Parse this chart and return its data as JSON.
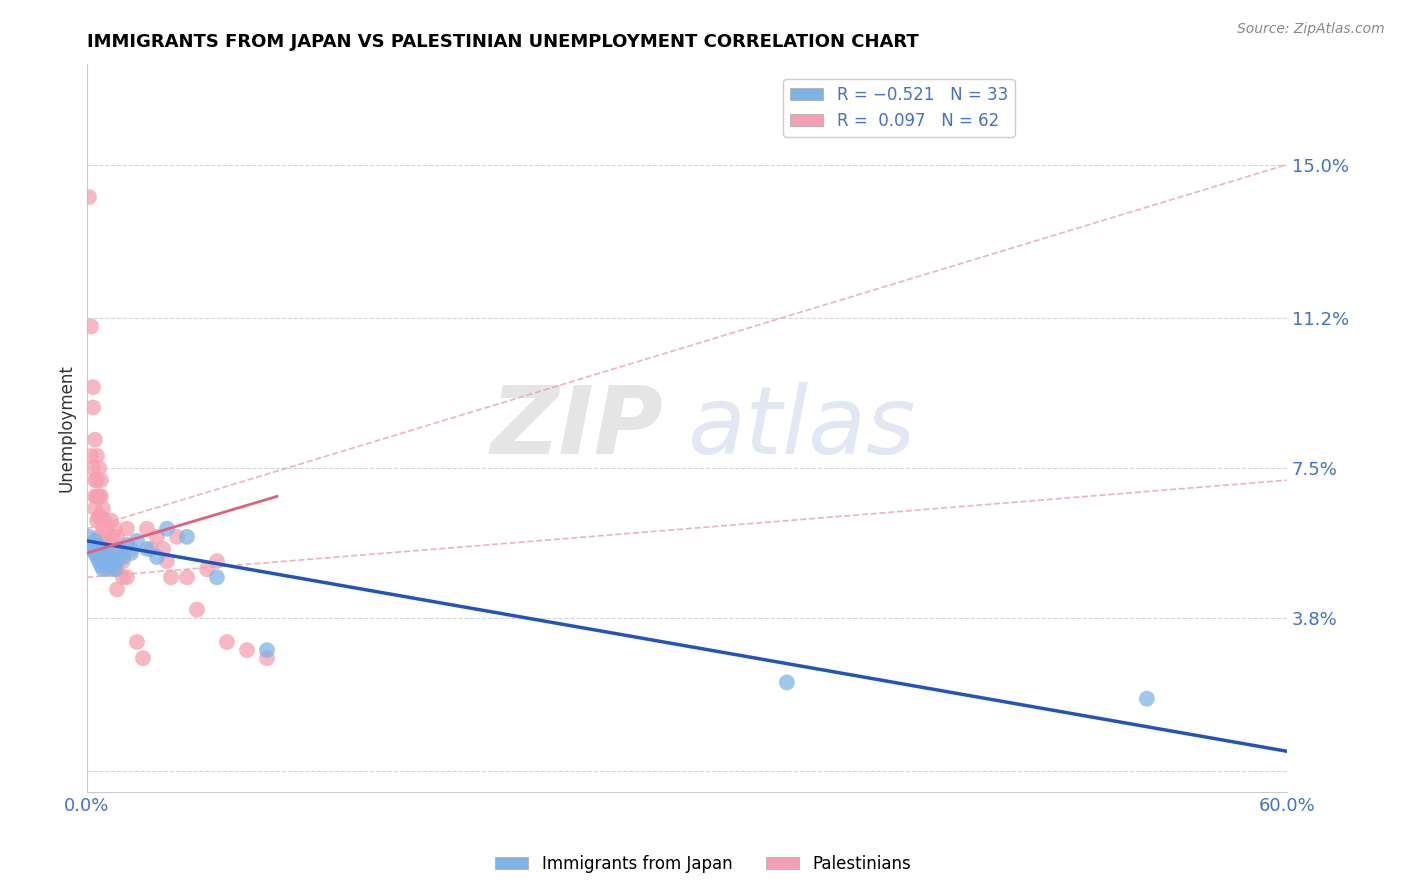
{
  "title": "IMMIGRANTS FROM JAPAN VS PALESTINIAN UNEMPLOYMENT CORRELATION CHART",
  "source_text": "Source: ZipAtlas.com",
  "ylabel": "Unemployment",
  "xlim": [
    0.0,
    0.6
  ],
  "ylim": [
    -0.005,
    0.175
  ],
  "yticks": [
    0.0,
    0.038,
    0.075,
    0.112,
    0.15
  ],
  "ytick_labels": [
    "",
    "3.8%",
    "7.5%",
    "11.2%",
    "15.0%"
  ],
  "xticks": [
    0.0,
    0.1,
    0.2,
    0.3,
    0.4,
    0.5,
    0.6
  ],
  "xtick_labels": [
    "0.0%",
    "",
    "",
    "",
    "",
    "",
    "60.0%"
  ],
  "japan_color": "#7fb3e8",
  "palestine_color": "#f5a0b0",
  "background_color": "#ffffff",
  "grid_color": "#c8c8d0",
  "axis_label_color": "#4472c4",
  "watermark_zip": "ZIP",
  "watermark_atlas": "atlas",
  "japan_line_color": "#2255bb",
  "palestine_line_color": "#e06080",
  "palestine_ci_color": "#e8a0b0",
  "japan_points": [
    [
      0.001,
      0.058
    ],
    [
      0.002,
      0.055
    ],
    [
      0.003,
      0.055
    ],
    [
      0.004,
      0.057
    ],
    [
      0.004,
      0.054
    ],
    [
      0.005,
      0.056
    ],
    [
      0.005,
      0.053
    ],
    [
      0.006,
      0.055
    ],
    [
      0.006,
      0.052
    ],
    [
      0.007,
      0.054
    ],
    [
      0.007,
      0.051
    ],
    [
      0.008,
      0.053
    ],
    [
      0.008,
      0.05
    ],
    [
      0.009,
      0.052
    ],
    [
      0.01,
      0.054
    ],
    [
      0.011,
      0.052
    ],
    [
      0.012,
      0.053
    ],
    [
      0.013,
      0.051
    ],
    [
      0.014,
      0.05
    ],
    [
      0.015,
      0.052
    ],
    [
      0.016,
      0.055
    ],
    [
      0.018,
      0.053
    ],
    [
      0.02,
      0.056
    ],
    [
      0.022,
      0.054
    ],
    [
      0.025,
      0.057
    ],
    [
      0.03,
      0.055
    ],
    [
      0.035,
      0.053
    ],
    [
      0.04,
      0.06
    ],
    [
      0.05,
      0.058
    ],
    [
      0.065,
      0.048
    ],
    [
      0.09,
      0.03
    ],
    [
      0.35,
      0.022
    ],
    [
      0.53,
      0.018
    ]
  ],
  "palestine_points": [
    [
      0.001,
      0.142
    ],
    [
      0.002,
      0.11
    ],
    [
      0.002,
      0.078
    ],
    [
      0.003,
      0.095
    ],
    [
      0.003,
      0.075
    ],
    [
      0.003,
      0.09
    ],
    [
      0.004,
      0.082
    ],
    [
      0.004,
      0.072
    ],
    [
      0.004,
      0.068
    ],
    [
      0.004,
      0.065
    ],
    [
      0.005,
      0.078
    ],
    [
      0.005,
      0.072
    ],
    [
      0.005,
      0.068
    ],
    [
      0.005,
      0.062
    ],
    [
      0.006,
      0.075
    ],
    [
      0.006,
      0.068
    ],
    [
      0.006,
      0.063
    ],
    [
      0.006,
      0.058
    ],
    [
      0.007,
      0.072
    ],
    [
      0.007,
      0.068
    ],
    [
      0.007,
      0.063
    ],
    [
      0.007,
      0.057
    ],
    [
      0.008,
      0.065
    ],
    [
      0.008,
      0.06
    ],
    [
      0.008,
      0.055
    ],
    [
      0.009,
      0.062
    ],
    [
      0.009,
      0.057
    ],
    [
      0.01,
      0.06
    ],
    [
      0.01,
      0.055
    ],
    [
      0.01,
      0.05
    ],
    [
      0.011,
      0.057
    ],
    [
      0.012,
      0.062
    ],
    [
      0.012,
      0.055
    ],
    [
      0.012,
      0.05
    ],
    [
      0.013,
      0.058
    ],
    [
      0.014,
      0.06
    ],
    [
      0.014,
      0.055
    ],
    [
      0.015,
      0.058
    ],
    [
      0.015,
      0.05
    ],
    [
      0.015,
      0.045
    ],
    [
      0.016,
      0.055
    ],
    [
      0.018,
      0.052
    ],
    [
      0.018,
      0.048
    ],
    [
      0.02,
      0.06
    ],
    [
      0.02,
      0.048
    ],
    [
      0.022,
      0.055
    ],
    [
      0.025,
      0.032
    ],
    [
      0.028,
      0.028
    ],
    [
      0.03,
      0.06
    ],
    [
      0.032,
      0.055
    ],
    [
      0.035,
      0.058
    ],
    [
      0.038,
      0.055
    ],
    [
      0.04,
      0.052
    ],
    [
      0.042,
      0.048
    ],
    [
      0.045,
      0.058
    ],
    [
      0.05,
      0.048
    ],
    [
      0.055,
      0.04
    ],
    [
      0.06,
      0.05
    ],
    [
      0.065,
      0.052
    ],
    [
      0.07,
      0.032
    ],
    [
      0.08,
      0.03
    ],
    [
      0.09,
      0.028
    ]
  ]
}
